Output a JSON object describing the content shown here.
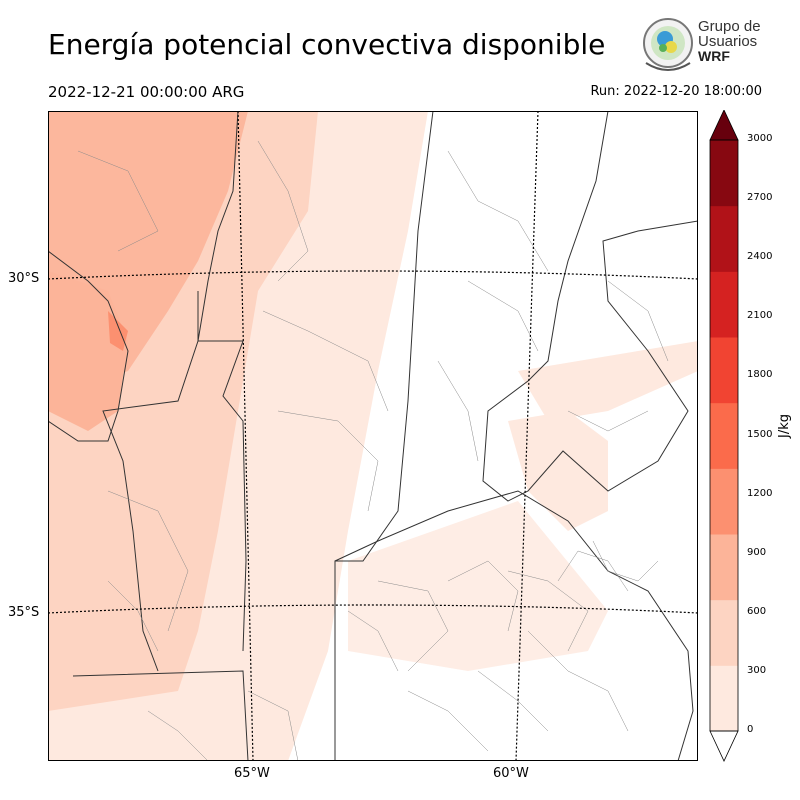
{
  "header": {
    "title": "Energía potencial convectiva disponible",
    "valid_time": "2022-12-21 00:00:00 ARG",
    "run_time": "Run: 2022-12-20 18:00:00"
  },
  "logo": {
    "line1": "Grupo de",
    "line2": "Usuarios",
    "line3": "WRF"
  },
  "map": {
    "lat_labels": [
      "30°S",
      "35°S"
    ],
    "lon_labels": [
      "65°W",
      "60°W"
    ]
  },
  "colorbar": {
    "unit": "J/kg",
    "ticks": [
      "0",
      "300",
      "600",
      "900",
      "1200",
      "1500",
      "1800",
      "2100",
      "2400",
      "2700",
      "3000"
    ],
    "colors": [
      "#fee9df",
      "#fdd4c2",
      "#fcb499",
      "#fc9070",
      "#fb6b4b",
      "#f14432",
      "#d52221",
      "#b11218",
      "#870811"
    ],
    "extend": "both"
  }
}
